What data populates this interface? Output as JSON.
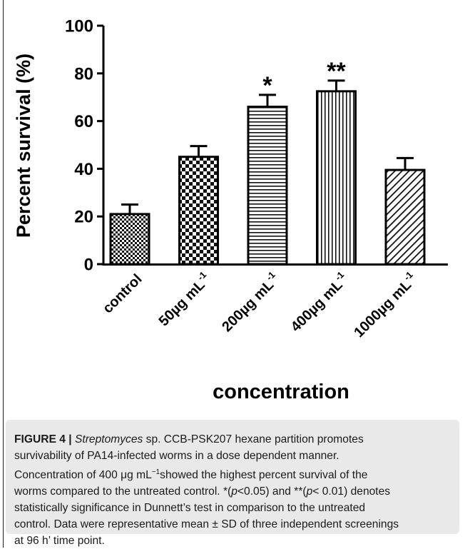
{
  "chart_data": {
    "type": "bar",
    "ylabel": "Percent survival (%)",
    "xlabel": "concentration",
    "ylim": [
      0,
      100
    ],
    "yticks": [
      "0",
      "20",
      "40",
      "60",
      "80",
      "100"
    ],
    "grid": false,
    "categories": [
      "control",
      "50µg mL-1",
      "200µg mL-1",
      "400µg mL-1",
      "1000µg mL-1"
    ],
    "category_labels": [
      {
        "base": "control",
        "sup": ""
      },
      {
        "base": "50µg mL",
        "sup": "-1"
      },
      {
        "base": "200µg mL",
        "sup": "-1"
      },
      {
        "base": "400µg mL",
        "sup": "-1"
      },
      {
        "base": "1000µg mL",
        "sup": "-1"
      }
    ],
    "values": [
      21,
      45,
      66,
      72.5,
      39.5
    ],
    "sd": [
      4,
      4.5,
      5,
      4.5,
      5
    ],
    "significance": [
      "",
      "",
      "*",
      "**",
      ""
    ],
    "patterns": [
      "fine-checker",
      "checker",
      "horizontal-lines",
      "vertical-lines",
      "diagonal-lines"
    ]
  },
  "caption": {
    "label": "FIGURE 4 |",
    "italic_name": "Streptomyces",
    "line1_rest": " sp. CCB-PSK207 hexane partition promotes",
    "line2": "survivability of PA14-infected worms in a dose dependent manner.",
    "line3_pre": "Concentration of 400 μg mL",
    "line3_sup": "−1",
    "line3_post": "showed the highest percent survival of the",
    "line4": "worms compared to the untreated control. *(",
    "line4_p1": "p",
    "line4_mid": "<0.05) and **(",
    "line4_p2": "p",
    "line4_end": "< 0.01) denotes",
    "line5": "statistically significance in Dunnett’s test in comparison to the untreated",
    "line6": "control. Data were representative mean ± SD of three independent screenings",
    "line7": "at 96 h’ time point."
  }
}
